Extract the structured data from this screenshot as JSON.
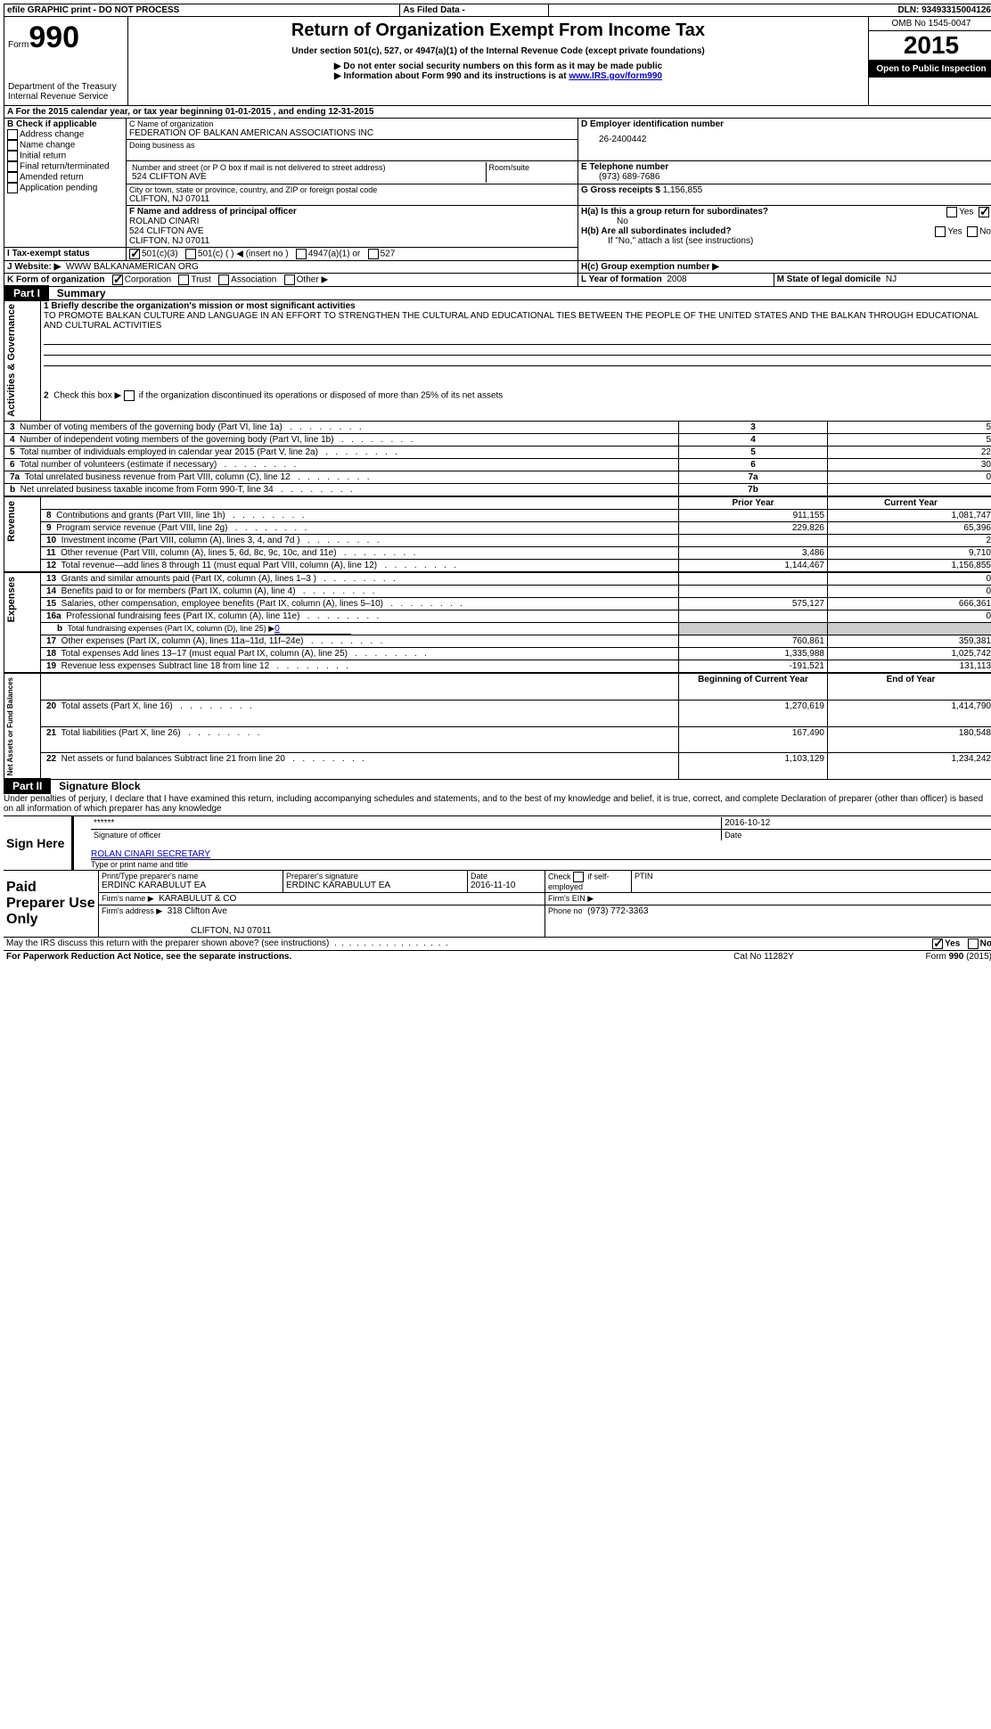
{
  "header": {
    "efile": "efile GRAPHIC print - DO NOT PROCESS",
    "asFiled": "As Filed Data -",
    "dln_label": "DLN:",
    "dln": "93493315004126",
    "form_prefix": "Form",
    "form_number": "990",
    "title": "Return of Organization Exempt From Income Tax",
    "subtitle": "Under section 501(c), 527, or 4947(a)(1) of the Internal Revenue Code (except private foundations)",
    "note1": "▶ Do not enter social security numbers on this form as it may be made public",
    "note2": "▶ Information about Form 990 and its instructions is at",
    "note2_link": "www.IRS.gov/form990",
    "dept": "Department of the Treasury",
    "irs": "Internal Revenue Service",
    "omb_label": "OMB No",
    "omb": "1545-0047",
    "year": "2015",
    "open": "Open to Public Inspection"
  },
  "sectionA": {
    "tax_year": "For the 2015 calendar year, or tax year beginning 01-01-2015     , and ending 12-31-2015",
    "B_label": "B Check if applicable",
    "addr_change": "Address change",
    "name_change": "Name change",
    "initial": "Initial return",
    "final": "Final return/terminated",
    "amended": "Amended return",
    "app_pending": "Application pending",
    "C_label": "C Name of organization",
    "org_name": "FEDERATION OF BALKAN AMERICAN ASSOCIATIONS INC",
    "dba_label": "Doing business as",
    "addr_label": "Number and street (or P O  box if mail is not delivered to street address)",
    "room_label": "Room/suite",
    "address": "524 CLIFTON AVE",
    "city_label": "City or town, state or province, country, and ZIP or foreign postal code",
    "city": "CLIFTON, NJ  07011",
    "D_label": "D Employer identification number",
    "ein": "26-2400442",
    "E_label": "E Telephone number",
    "phone": "(973) 689-7686",
    "G_label": "G Gross receipts $",
    "gross": "1,156,855",
    "F_label": "F  Name and address of principal officer",
    "officer_name": "ROLAND CINARI",
    "officer_addr1": "524 CLIFTON AVE",
    "officer_addr2": "CLIFTON, NJ  07011",
    "Ha_label": "H(a)  Is this a group return for subordinates?",
    "Ha_no": "No",
    "Hb_label": "H(b)  Are all subordinates included?",
    "Hb_note": "If \"No,\" attach a list  (see instructions)",
    "Hc_label": "H(c)   Group exemption number ▶",
    "yes": "Yes",
    "no": "No",
    "I_label": "I  Tax-exempt status",
    "i501c3": "501(c)(3)",
    "i501c": "501(c) (  ) ◀ (insert no )",
    "i4947": "4947(a)(1) or",
    "i527": "527",
    "J_label": "J  Website: ▶",
    "website": "WWW BALKANAMERICAN ORG",
    "K_label": "K Form of organization",
    "k_corp": "Corporation",
    "k_trust": "Trust",
    "k_assoc": "Association",
    "k_other": "Other ▶",
    "L_label": "L Year of formation",
    "L_val": "2008",
    "M_label": "M State of legal domicile",
    "M_val": "NJ"
  },
  "part1": {
    "title": "Part I",
    "subtitle": "Summary",
    "line1_label": "1 Briefly describe the organization's mission or most significant activities",
    "mission": "TO PROMOTE BALKAN CULTURE AND LANGUAGE IN AN EFFORT TO STRENGTHEN THE CULTURAL AND EDUCATIONAL TIES BETWEEN THE PEOPLE OF THE UNITED STATES AND THE BALKAN THROUGH EDUCATIONAL AND CULTURAL ACTIVITIES",
    "line2": "2  Check this box ▶       if the organization discontinued its operations or disposed of more than 25% of its net assets",
    "gov_label": "Activities & Governance",
    "rev_label": "Revenue",
    "exp_label": "Expenses",
    "net_label": "Net Assets or Fund Balances",
    "rows_gov": [
      {
        "n": "3",
        "t": "Number of voting members of the governing body (Part VI, line 1a)",
        "box": "3",
        "v": "5"
      },
      {
        "n": "4",
        "t": "Number of independent voting members of the governing body (Part VI, line 1b)",
        "box": "4",
        "v": "5"
      },
      {
        "n": "5",
        "t": "Total number of individuals employed in calendar year 2015 (Part V, line 2a)",
        "box": "5",
        "v": "22"
      },
      {
        "n": "6",
        "t": "Total number of volunteers (estimate if necessary)",
        "box": "6",
        "v": "30"
      },
      {
        "n": "7a",
        "t": "Total unrelated business revenue from Part VIII, column (C), line 12",
        "box": "7a",
        "v": "0"
      },
      {
        "n": "b",
        "t": "Net unrelated business taxable income from Form 990-T, line 34",
        "box": "7b",
        "v": ""
      }
    ],
    "prior": "Prior Year",
    "current": "Current Year",
    "rows_rev": [
      {
        "n": "8",
        "t": "Contributions and grants (Part VIII, line 1h)",
        "p": "911,155",
        "c": "1,081,747"
      },
      {
        "n": "9",
        "t": "Program service revenue (Part VIII, line 2g)",
        "p": "229,826",
        "c": "65,396"
      },
      {
        "n": "10",
        "t": "Investment income (Part VIII, column (A), lines 3, 4, and 7d )",
        "p": "",
        "c": "2"
      },
      {
        "n": "11",
        "t": "Other revenue (Part VIII, column (A), lines 5, 6d, 8c, 9c, 10c, and 11e)",
        "p": "3,486",
        "c": "9,710"
      },
      {
        "n": "12",
        "t": "Total revenue—add lines 8 through 11 (must equal Part VIII, column (A), line 12)",
        "p": "1,144,467",
        "c": "1,156,855"
      }
    ],
    "rows_exp": [
      {
        "n": "13",
        "t": "Grants and similar amounts paid (Part IX, column (A), lines 1–3 )",
        "p": "",
        "c": "0"
      },
      {
        "n": "14",
        "t": "Benefits paid to or for members (Part IX, column (A), line 4)",
        "p": "",
        "c": "0"
      },
      {
        "n": "15",
        "t": "Salaries, other compensation, employee benefits (Part IX, column (A), lines 5–10)",
        "p": "575,127",
        "c": "666,361"
      },
      {
        "n": "16a",
        "t": "Professional fundraising fees (Part IX, column (A), line 11e)",
        "p": "",
        "c": "0"
      }
    ],
    "line_b": "b",
    "line_b_text": "Total fundraising expenses (Part IX, column (D), line 25) ▶",
    "line_b_val": "0",
    "rows_exp2": [
      {
        "n": "17",
        "t": "Other expenses (Part IX, column (A), lines 11a–11d, 11f–24e)",
        "p": "760,861",
        "c": "359,381"
      },
      {
        "n": "18",
        "t": "Total expenses  Add lines 13–17 (must equal Part IX, column (A), line 25)",
        "p": "1,335,988",
        "c": "1,025,742"
      },
      {
        "n": "19",
        "t": "Revenue less expenses  Subtract line 18 from line 12",
        "p": "-191,521",
        "c": "131,113"
      }
    ],
    "begin": "Beginning of Current Year",
    "end": "End of Year",
    "rows_net": [
      {
        "n": "20",
        "t": "Total assets (Part X, line 16)",
        "p": "1,270,619",
        "c": "1,414,790"
      },
      {
        "n": "21",
        "t": "Total liabilities (Part X, line 26)",
        "p": "167,490",
        "c": "180,548"
      },
      {
        "n": "22",
        "t": "Net assets or fund balances  Subtract line 21 from line 20",
        "p": "1,103,129",
        "c": "1,234,242"
      }
    ]
  },
  "part2": {
    "title": "Part II",
    "subtitle": "Signature Block",
    "declaration": "Under penalties of perjury, I declare that I have examined this return, including accompanying schedules and statements, and to the best of my knowledge and belief, it is true, correct, and complete  Declaration of preparer (other than officer) is based on all information of which preparer has any knowledge",
    "sign_here": "Sign Here",
    "sig_stars": "******",
    "sig_date": "2016-10-12",
    "sig_officer": "Signature of officer",
    "date_label": "Date",
    "officer_title": "ROLAN CINARI SECRETARY",
    "type_name": "Type or print name and title",
    "paid": "Paid Preparer Use Only",
    "prep_name_label": "Print/Type preparer's name",
    "prep_name": "ERDINC KARABULUT EA",
    "prep_sig_label": "Preparer's signature",
    "prep_sig": "ERDINC KARABULUT EA",
    "prep_date_label": "Date",
    "prep_date": "2016-11-10",
    "check_if": "Check         if self-employed",
    "ptin": "PTIN",
    "firm_name_label": "Firm's name    ▶",
    "firm_name": "KARABULUT & CO",
    "firm_ein_label": "Firm's EIN ▶",
    "firm_addr_label": "Firm's address ▶",
    "firm_addr": "318 Clifton Ave",
    "firm_city": "CLIFTON, NJ  07011",
    "phone_label": "Phone no",
    "phone": "(973) 772-3363",
    "may_irs": "May the IRS discuss this return with the preparer shown above? (see instructions)",
    "yes": "Yes",
    "no": "No"
  },
  "footer": {
    "paperwork": "For Paperwork Reduction Act Notice, see the separate instructions.",
    "cat": "Cat  No  11282Y",
    "form": "Form 990 (2015)"
  }
}
